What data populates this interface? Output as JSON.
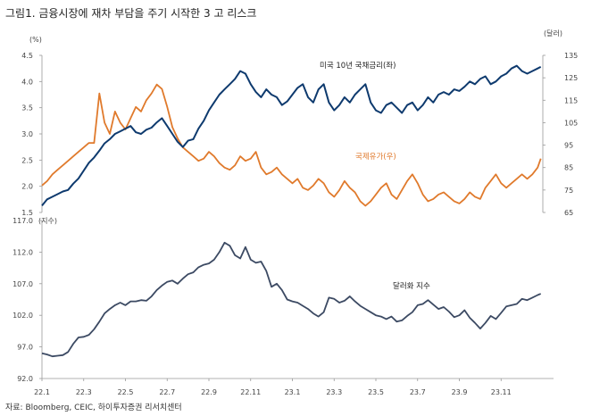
{
  "title": "그림1.   금융시장에 재차 부담을 주기 시작한 3 고 리스크",
  "source": "자료: Bloomberg, CEIC, 하이투자증권 리서치센터",
  "colors": {
    "rate": "#0e3a6e",
    "oil": "#e07a2c",
    "dollar": "#3c4a63",
    "axis": "#999999"
  },
  "chart_data": [
    {
      "type": "line",
      "panel": "top",
      "left_unit": "(%)",
      "right_unit": "(달러)",
      "left_ylim": [
        1.5,
        4.5
      ],
      "left_ticks": [
        "4.5",
        "4.0",
        "3.5",
        "3.0",
        "2.5",
        "2.0",
        "1.5"
      ],
      "right_ylim": [
        65,
        135
      ],
      "right_ticks": [
        "135",
        "125",
        "115",
        "105",
        "95",
        "85",
        "75",
        "65"
      ],
      "series": [
        {
          "name": "미국 10년 국채금리(좌)",
          "axis": "left",
          "x": [
            0,
            0.25,
            0.5,
            0.75,
            1.0,
            1.25,
            1.5,
            1.75,
            2.0,
            2.25,
            2.5,
            2.75,
            3.0,
            3.25,
            3.5,
            3.75,
            4.0,
            4.25,
            4.5,
            4.75,
            5.0,
            5.25,
            5.5,
            5.75,
            6.0,
            6.25,
            6.5,
            6.75,
            7.0,
            7.25,
            7.5,
            7.75,
            8.0,
            8.25,
            8.5,
            8.75,
            9.0,
            9.25,
            9.5,
            9.75,
            10.0,
            10.25,
            10.5,
            10.75,
            11.0,
            11.25,
            11.5,
            11.75,
            12.0,
            12.25,
            12.5,
            12.75,
            13.0,
            13.25,
            13.5,
            13.75,
            14.0,
            14.25,
            14.5,
            14.75,
            15.0,
            15.25,
            15.5,
            15.75,
            16.0,
            16.25,
            16.5,
            16.75,
            17.0,
            17.25,
            17.5,
            17.75,
            18.0,
            18.25,
            18.5,
            18.75,
            19.0,
            19.25,
            19.5,
            19.75,
            20.0,
            20.25,
            20.5,
            20.75,
            21.0,
            21.25,
            21.5,
            21.75,
            22.0,
            22.25,
            22.5,
            22.75,
            23.0,
            23.25,
            23.5,
            23.75,
            23.9
          ],
          "values": [
            1.63,
            1.75,
            1.8,
            1.85,
            1.9,
            1.93,
            2.05,
            2.15,
            2.3,
            2.45,
            2.55,
            2.68,
            2.82,
            2.9,
            3.0,
            3.05,
            3.1,
            3.15,
            3.03,
            3.0,
            3.08,
            3.12,
            3.22,
            3.3,
            3.15,
            3.0,
            2.85,
            2.75,
            2.87,
            2.9,
            3.1,
            3.25,
            3.45,
            3.6,
            3.75,
            3.85,
            3.95,
            4.05,
            4.2,
            4.15,
            3.95,
            3.8,
            3.7,
            3.85,
            3.75,
            3.7,
            3.55,
            3.62,
            3.75,
            3.88,
            3.95,
            3.7,
            3.6,
            3.85,
            3.95,
            3.6,
            3.45,
            3.55,
            3.7,
            3.6,
            3.75,
            3.85,
            3.95,
            3.6,
            3.45,
            3.4,
            3.55,
            3.6,
            3.5,
            3.4,
            3.55,
            3.6,
            3.45,
            3.55,
            3.7,
            3.6,
            3.75,
            3.8,
            3.75,
            3.85,
            3.82,
            3.9,
            4.0,
            3.95,
            4.05,
            4.1,
            3.95,
            4.0,
            4.1,
            4.15,
            4.25,
            4.3,
            4.2,
            4.15,
            4.2,
            4.25,
            4.28
          ]
        },
        {
          "name": "국제유가(우)",
          "axis": "right",
          "x": [
            0,
            0.25,
            0.5,
            0.75,
            1.0,
            1.25,
            1.5,
            1.75,
            2.0,
            2.25,
            2.5,
            2.75,
            3.0,
            3.25,
            3.5,
            3.75,
            4.0,
            4.25,
            4.5,
            4.75,
            5.0,
            5.25,
            5.5,
            5.75,
            6.0,
            6.25,
            6.5,
            6.75,
            7.0,
            7.25,
            7.5,
            7.75,
            8.0,
            8.25,
            8.5,
            8.75,
            9.0,
            9.25,
            9.5,
            9.75,
            10.0,
            10.25,
            10.5,
            10.75,
            11.0,
            11.25,
            11.5,
            11.75,
            12.0,
            12.25,
            12.5,
            12.75,
            13.0,
            13.25,
            13.5,
            13.75,
            14.0,
            14.25,
            14.5,
            14.75,
            15.0,
            15.25,
            15.5,
            15.75,
            16.0,
            16.25,
            16.5,
            16.75,
            17.0,
            17.25,
            17.5,
            17.75,
            18.0,
            18.25,
            18.5,
            18.75,
            19.0,
            19.25,
            19.5,
            19.75,
            20.0,
            20.25,
            20.5,
            20.75,
            21.0,
            21.25,
            21.5,
            21.75,
            22.0,
            22.25,
            22.5,
            22.75,
            23.0,
            23.25,
            23.5,
            23.75,
            23.9
          ],
          "values": [
            77,
            79,
            82,
            84,
            86,
            88,
            90,
            92,
            94,
            96,
            96,
            118,
            105,
            100,
            110,
            105,
            102,
            107,
            112,
            110,
            115,
            118,
            122,
            120,
            112,
            103,
            98,
            94,
            92,
            90,
            88,
            89,
            92,
            90,
            87,
            85,
            84,
            86,
            90,
            88,
            89,
            92,
            85,
            82,
            83,
            85,
            82,
            80,
            78,
            80,
            76,
            75,
            77,
            80,
            78,
            74,
            72,
            75,
            79,
            76,
            74,
            70,
            68,
            70,
            73,
            76,
            78,
            73,
            71,
            75,
            79,
            82,
            78,
            73,
            70,
            71,
            73,
            74,
            72,
            70,
            69,
            71,
            74,
            72,
            71,
            76,
            79,
            82,
            78,
            76,
            78,
            80,
            82,
            80,
            82,
            85,
            89
          ]
        }
      ],
      "labels": [
        "미국 10년 국채금리(좌)",
        "국제유가(우)"
      ]
    },
    {
      "type": "line",
      "panel": "bottom",
      "left_unit": "(지수)",
      "left_ylim": [
        92.0,
        117.0
      ],
      "left_ticks": [
        "117.0",
        "112.0",
        "107.0",
        "102.0",
        "97.0",
        "92.0"
      ],
      "x_ticks": [
        "22.1",
        "22.3",
        "22.5",
        "22.7",
        "22.9",
        "22.11",
        "23.1",
        "23.3",
        "23.5",
        "23.7",
        "23.9",
        "23.11"
      ],
      "series": [
        {
          "name": "달러화 지수",
          "axis": "left",
          "x": [
            0,
            0.25,
            0.5,
            0.75,
            1.0,
            1.25,
            1.5,
            1.75,
            2.0,
            2.25,
            2.5,
            2.75,
            3.0,
            3.25,
            3.5,
            3.75,
            4.0,
            4.25,
            4.5,
            4.75,
            5.0,
            5.25,
            5.5,
            5.75,
            6.0,
            6.25,
            6.5,
            6.75,
            7.0,
            7.25,
            7.5,
            7.75,
            8.0,
            8.25,
            8.5,
            8.75,
            9.0,
            9.25,
            9.5,
            9.75,
            10.0,
            10.25,
            10.5,
            10.75,
            11.0,
            11.25,
            11.5,
            11.75,
            12.0,
            12.25,
            12.5,
            12.75,
            13.0,
            13.25,
            13.5,
            13.75,
            14.0,
            14.25,
            14.5,
            14.75,
            15.0,
            15.25,
            15.5,
            15.75,
            16.0,
            16.25,
            16.5,
            16.75,
            17.0,
            17.25,
            17.5,
            17.75,
            18.0,
            18.25,
            18.5,
            18.75,
            19.0,
            19.25,
            19.5,
            19.75,
            20.0,
            20.25,
            20.5,
            20.75,
            21.0,
            21.25,
            21.5,
            21.75,
            22.0,
            22.25,
            22.5,
            22.75,
            23.0,
            23.25,
            23.5,
            23.75,
            23.9
          ],
          "values": [
            96.0,
            95.8,
            95.5,
            95.6,
            95.7,
            96.2,
            97.5,
            98.5,
            98.6,
            98.9,
            99.8,
            101.0,
            102.3,
            103.0,
            103.6,
            104.0,
            103.6,
            104.2,
            104.2,
            104.4,
            104.3,
            105.0,
            106.0,
            106.7,
            107.3,
            107.5,
            107.0,
            107.8,
            108.5,
            108.8,
            109.6,
            110.0,
            110.2,
            110.8,
            112.0,
            113.5,
            113.0,
            111.5,
            111.0,
            112.8,
            110.8,
            110.3,
            110.5,
            109.0,
            106.5,
            107.0,
            106.0,
            104.5,
            104.2,
            104.0,
            103.5,
            103.0,
            102.3,
            101.8,
            102.5,
            104.8,
            104.6,
            104.0,
            104.3,
            105.0,
            104.2,
            103.5,
            103.0,
            102.5,
            102.0,
            101.8,
            101.4,
            101.8,
            101.0,
            101.2,
            101.9,
            102.5,
            103.6,
            103.8,
            104.4,
            103.7,
            103.0,
            103.3,
            102.6,
            101.7,
            102.0,
            102.8,
            101.6,
            100.8,
            99.9,
            100.8,
            101.9,
            101.4,
            102.4,
            103.4,
            103.6,
            103.8,
            104.6,
            104.4,
            104.8,
            105.2,
            105.4
          ]
        }
      ],
      "labels": [
        "달러화 지수"
      ]
    }
  ]
}
